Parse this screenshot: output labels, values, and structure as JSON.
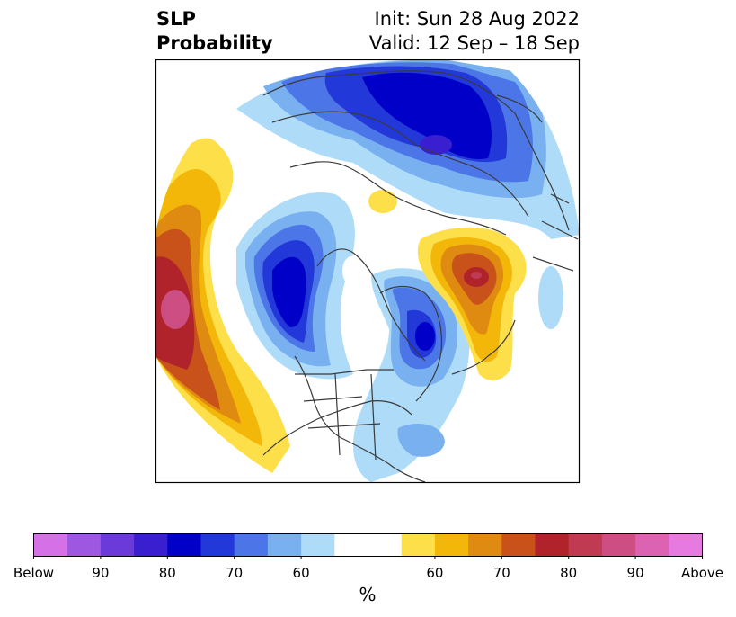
{
  "title": {
    "left_line1": "SLP",
    "left_line2": "Probability",
    "right_line1": "Init: Sun 28 Aug 2022",
    "right_line2": "Valid: 12 Sep – 18 Sep"
  },
  "colorbar": {
    "unit": "%",
    "tick_labels": [
      "Below",
      "90",
      "80",
      "70",
      "60",
      "60",
      "70",
      "80",
      "90",
      "Above"
    ],
    "colors": [
      "#d670e6",
      "#9d57e0",
      "#6a3bd8",
      "#3a1fd0",
      "#0000c8",
      "#2338d8",
      "#4c76e8",
      "#78b0f0",
      "#aedcf8",
      "#ffffff",
      "#ffffff",
      "#fddf4a",
      "#f2b708",
      "#df8a10",
      "#c8521a",
      "#b0232a",
      "#c03a52",
      "#cc4e82",
      "#dc62b2",
      "#e67ae0"
    ]
  },
  "map": {
    "projection": "north-polar-stereographic",
    "variable": "sea-level-pressure-probability"
  }
}
